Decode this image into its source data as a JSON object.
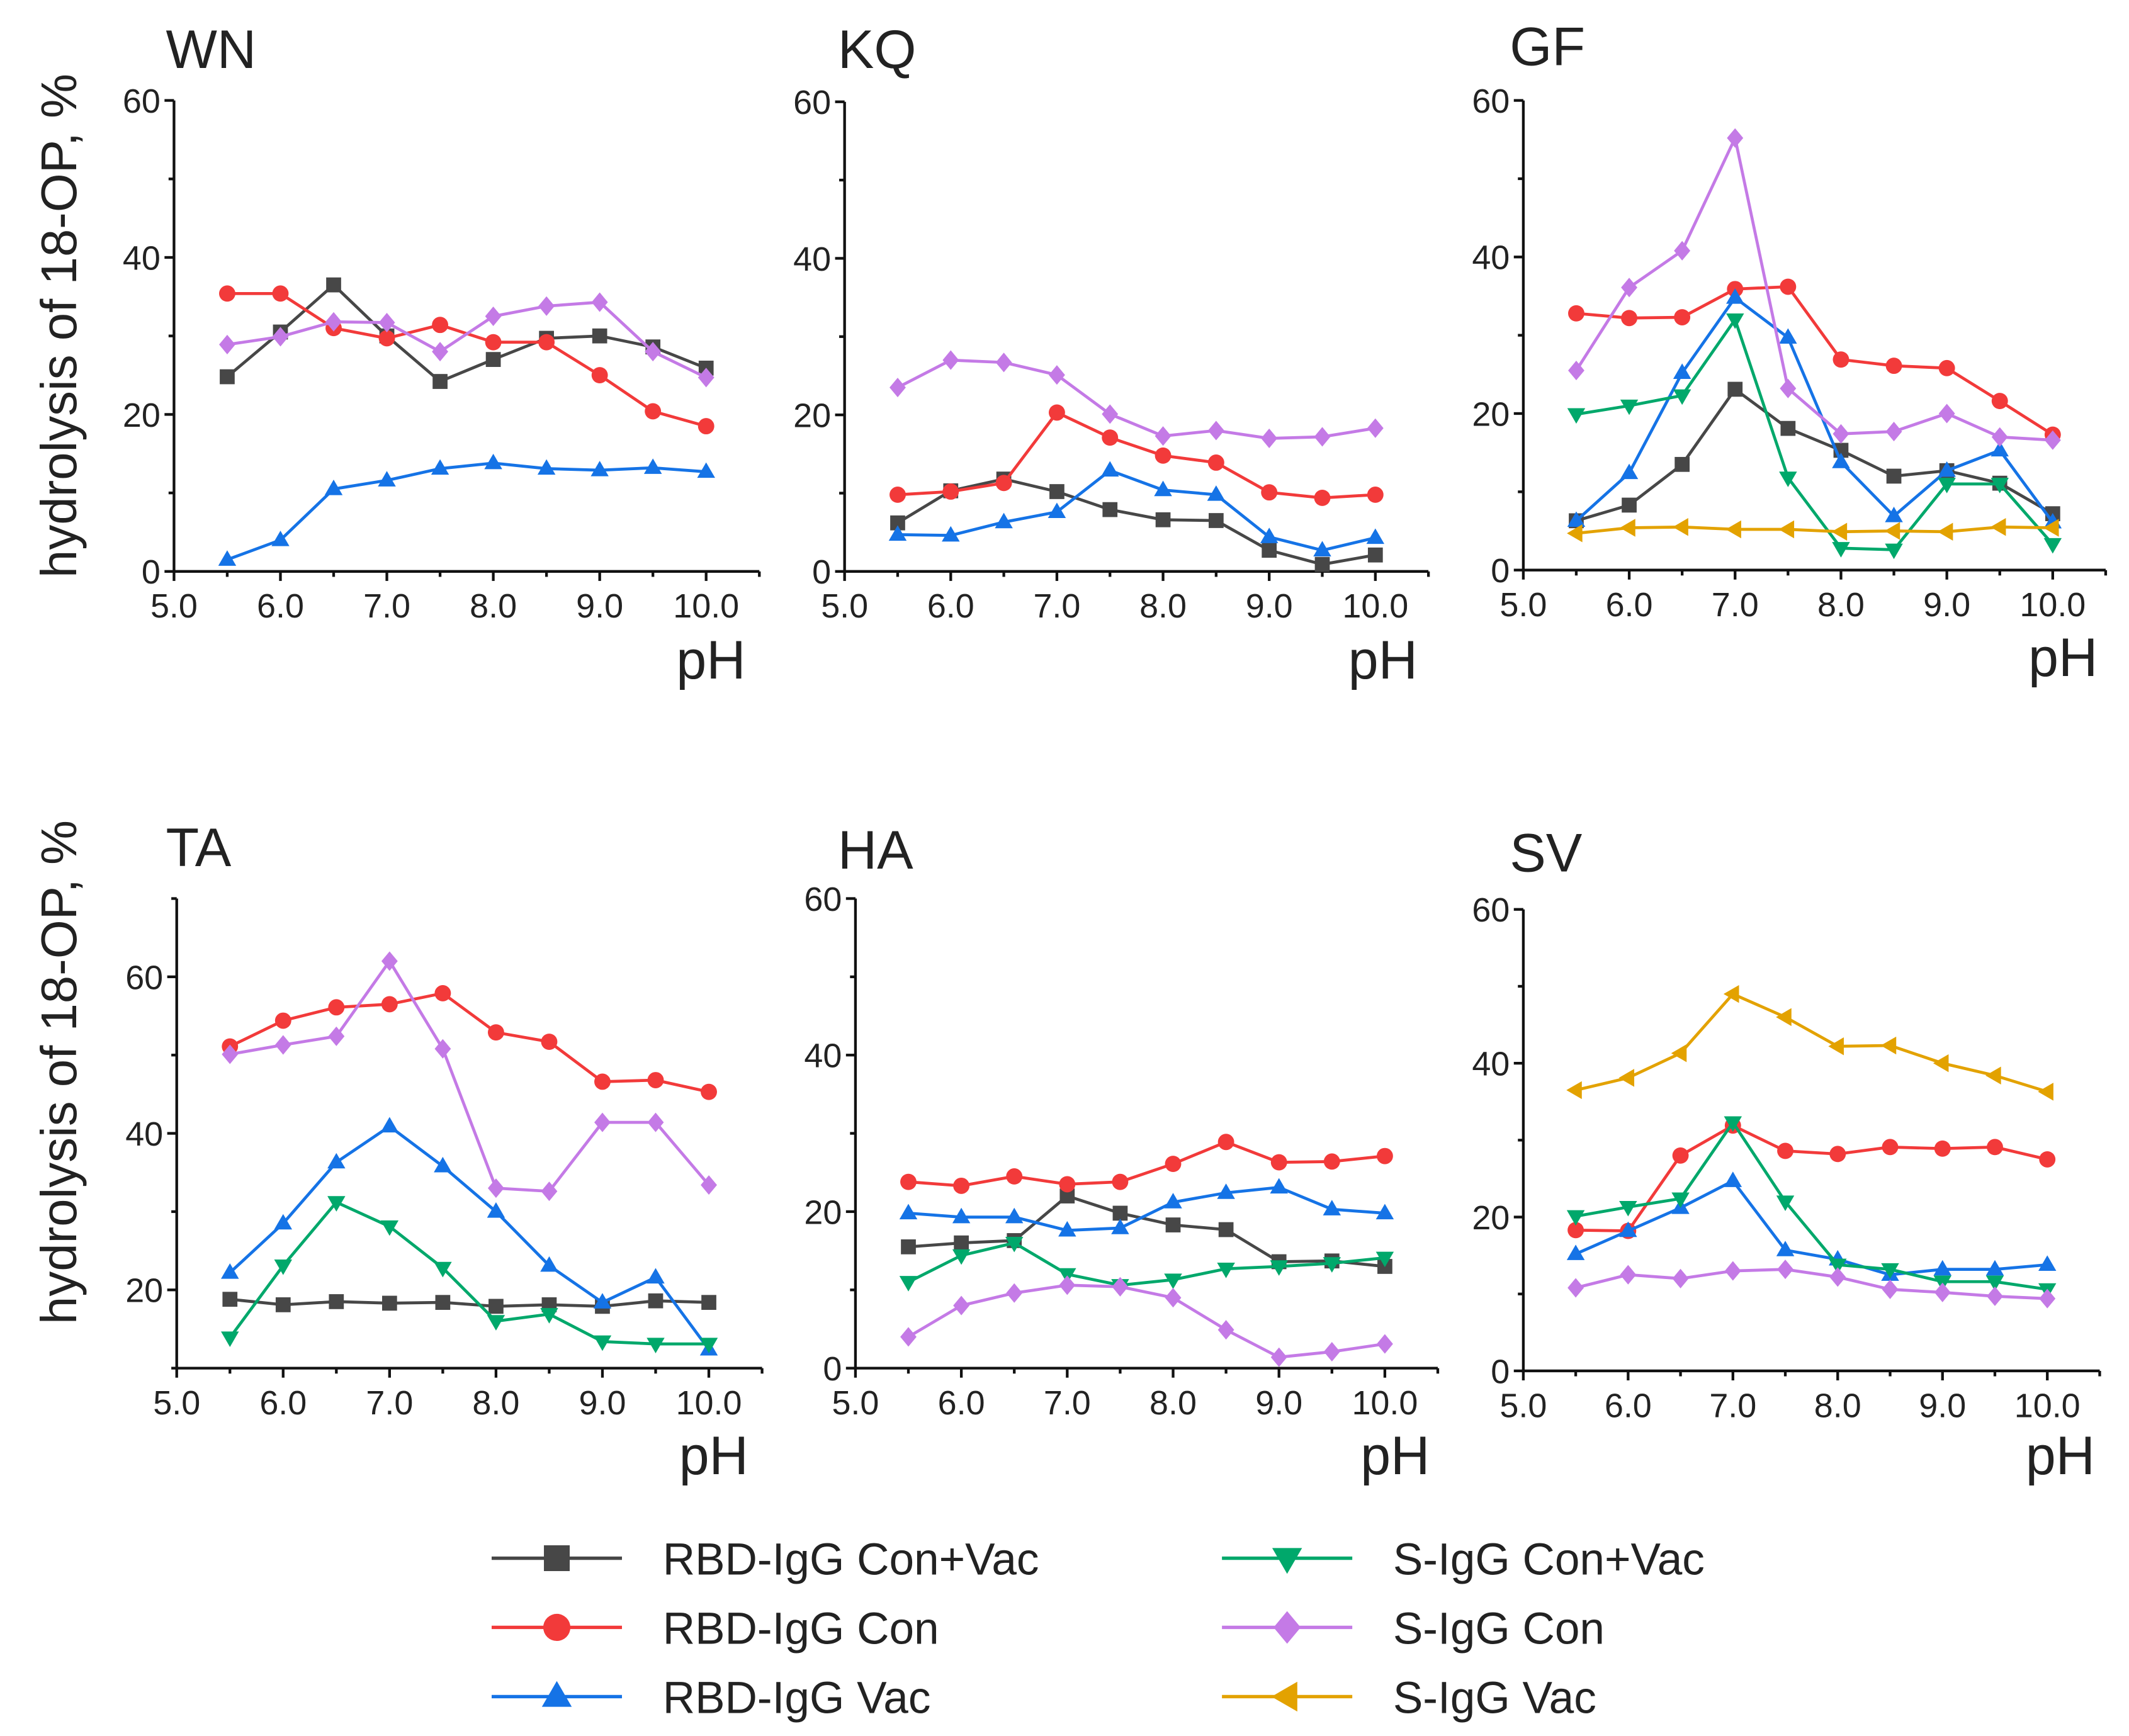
{
  "legend": [
    {
      "key": "rbd_convac",
      "label": "RBD-IgG  Con+Vac",
      "color": "#474747",
      "marker": "square"
    },
    {
      "key": "rbd_con",
      "label": "RBD-IgG  Con",
      "color": "#f23a3a",
      "marker": "circle"
    },
    {
      "key": "rbd_vac",
      "label": "RBD-IgG  Vac",
      "color": "#1573e6",
      "marker": "triangle-up"
    },
    {
      "key": "s_convac",
      "label": "S-IgG  Con+Vac",
      "color": "#00a86b",
      "marker": "triangle-down"
    },
    {
      "key": "s_con",
      "label": "S-IgG  Con",
      "color": "#c47ae6",
      "marker": "diamond"
    },
    {
      "key": "s_vac",
      "label": "S-IgG  Vac",
      "color": "#e3a200",
      "marker": "triangle-left"
    }
  ],
  "chart_data": [
    {
      "type": "line",
      "title": "WN",
      "xlabel": "pH",
      "ylabel": "hydrolysis of 18-OP, %",
      "xlim": [
        5.0,
        10.5
      ],
      "ylim": [
        0,
        60
      ],
      "xticks": [
        "5.0",
        "6.0",
        "7.0",
        "8.0",
        "9.0",
        "10.0"
      ],
      "yticks": [
        "0",
        "20",
        "40",
        "60"
      ],
      "x": [
        5.5,
        6.0,
        6.5,
        7.0,
        7.5,
        8.0,
        8.5,
        9.0,
        9.5,
        10.0
      ],
      "series": [
        {
          "name": "RBD-IgG  Con+Vac",
          "key": "rbd_convac",
          "values": [
            24.8,
            30.5,
            36.5,
            30.0,
            24.2,
            27.0,
            29.7,
            30.0,
            28.6,
            25.9
          ]
        },
        {
          "name": "RBD-IgG  Con",
          "key": "rbd_con",
          "values": [
            35.4,
            35.4,
            31.0,
            29.7,
            31.4,
            29.2,
            29.2,
            25.0,
            20.4,
            18.5
          ]
        },
        {
          "name": "RBD-IgG  Vac",
          "key": "rbd_vac",
          "values": [
            1.5,
            4.0,
            10.5,
            11.6,
            13.1,
            13.8,
            13.1,
            12.9,
            13.2,
            12.7
          ]
        },
        {
          "name": "S-IgG  Con",
          "key": "s_con",
          "values": [
            28.9,
            29.9,
            31.8,
            31.7,
            28.0,
            32.5,
            33.8,
            34.3,
            28.0,
            24.7
          ]
        }
      ]
    },
    {
      "type": "line",
      "title": "KQ",
      "xlabel": "pH",
      "ylabel": "",
      "xlim": [
        5.0,
        10.5
      ],
      "ylim": [
        0,
        60
      ],
      "xticks": [
        "5.0",
        "6.0",
        "7.0",
        "8.0",
        "9.0",
        "10.0"
      ],
      "yticks": [
        "0",
        "20",
        "40",
        "60"
      ],
      "x": [
        5.5,
        6.0,
        6.5,
        7.0,
        7.5,
        8.0,
        8.5,
        9.0,
        9.5,
        10.0
      ],
      "series": [
        {
          "name": "RBD-IgG  Con+Vac",
          "key": "rbd_convac",
          "values": [
            6.2,
            10.3,
            11.8,
            10.2,
            7.9,
            6.6,
            6.5,
            2.7,
            0.9,
            2.1
          ]
        },
        {
          "name": "RBD-IgG  Con",
          "key": "rbd_con",
          "values": [
            9.8,
            10.2,
            11.3,
            20.3,
            17.1,
            14.8,
            13.9,
            10.1,
            9.4,
            9.8
          ]
        },
        {
          "name": "RBD-IgG  Vac",
          "key": "rbd_vac",
          "values": [
            4.7,
            4.6,
            6.3,
            7.6,
            12.9,
            10.4,
            9.8,
            4.4,
            2.7,
            4.3
          ]
        },
        {
          "name": "S-IgG  Con",
          "key": "s_con",
          "values": [
            23.5,
            27.0,
            26.7,
            25.1,
            20.1,
            17.3,
            18.0,
            17.0,
            17.2,
            18.3
          ]
        }
      ]
    },
    {
      "type": "line",
      "title": "GF",
      "xlabel": "pH",
      "ylabel": "",
      "xlim": [
        5.0,
        10.5
      ],
      "ylim": [
        0,
        60
      ],
      "xticks": [
        "5.0",
        "6.0",
        "7.0",
        "8.0",
        "9.0",
        "10.0"
      ],
      "yticks": [
        "0",
        "20",
        "40",
        "60"
      ],
      "x": [
        5.5,
        6.0,
        6.5,
        7.0,
        7.5,
        8.0,
        8.5,
        9.0,
        9.5,
        10.0
      ],
      "series": [
        {
          "name": "RBD-IgG  Con+Vac",
          "key": "rbd_convac",
          "values": [
            6.3,
            8.3,
            13.5,
            23.1,
            18.1,
            15.3,
            12.0,
            12.7,
            11.1,
            7.2
          ]
        },
        {
          "name": "RBD-IgG  Con",
          "key": "rbd_con",
          "values": [
            32.8,
            32.2,
            32.3,
            35.9,
            36.2,
            26.9,
            26.1,
            25.8,
            21.6,
            17.3
          ]
        },
        {
          "name": "RBD-IgG  Vac",
          "key": "rbd_vac",
          "values": [
            6.3,
            12.4,
            25.2,
            34.8,
            29.7,
            13.8,
            6.9,
            12.7,
            15.3,
            6.1
          ]
        },
        {
          "name": "S-IgG  Con+Vac",
          "key": "s_convac",
          "values": [
            19.9,
            21.0,
            22.3,
            32.0,
            11.8,
            2.8,
            2.6,
            11.0,
            11.0,
            3.3
          ]
        },
        {
          "name": "S-IgG  Con",
          "key": "s_con",
          "values": [
            25.5,
            36.1,
            40.8,
            55.2,
            23.2,
            17.4,
            17.7,
            20.0,
            17.0,
            16.6
          ]
        },
        {
          "name": "S-IgG  Vac",
          "key": "s_vac",
          "values": [
            4.7,
            5.4,
            5.5,
            5.2,
            5.2,
            4.9,
            5.0,
            4.9,
            5.5,
            5.4
          ]
        }
      ]
    },
    {
      "type": "line",
      "title": "TA",
      "xlabel": "pH",
      "ylabel": "hydrolysis of 18-OP, %",
      "xlim": [
        5.0,
        10.5
      ],
      "ylim": [
        10,
        70
      ],
      "xticks": [
        "5.0",
        "6.0",
        "7.0",
        "8.0",
        "9.0",
        "10.0"
      ],
      "yticks": [
        "20",
        "40",
        "60"
      ],
      "x": [
        5.5,
        6.0,
        6.5,
        7.0,
        7.5,
        8.0,
        8.5,
        9.0,
        9.5,
        10.0
      ],
      "series": [
        {
          "name": "RBD-IgG  Con+Vac",
          "key": "rbd_convac",
          "values": [
            18.8,
            18.1,
            18.5,
            18.3,
            18.4,
            17.9,
            18.1,
            17.9,
            18.6,
            18.4
          ]
        },
        {
          "name": "RBD-IgG  Con",
          "key": "rbd_con",
          "values": [
            51.1,
            54.4,
            56.1,
            56.5,
            57.9,
            52.9,
            51.7,
            46.6,
            46.8,
            45.3
          ]
        },
        {
          "name": "RBD-IgG  Vac",
          "key": "rbd_vac",
          "values": [
            22.2,
            28.5,
            36.3,
            40.9,
            35.8,
            30.0,
            23.1,
            18.4,
            21.6,
            12.4
          ]
        },
        {
          "name": "S-IgG  Con+Vac",
          "key": "s_convac",
          "values": [
            13.9,
            23.1,
            31.2,
            28.1,
            22.8,
            16.0,
            16.9,
            13.4,
            13.1,
            13.1
          ]
        },
        {
          "name": "S-IgG  Con",
          "key": "s_con",
          "values": [
            50.1,
            51.3,
            52.4,
            62.0,
            50.8,
            33.0,
            32.6,
            41.4,
            41.4,
            33.4
          ]
        }
      ]
    },
    {
      "type": "line",
      "title": "HA",
      "xlabel": "pH",
      "ylabel": "",
      "xlim": [
        5.0,
        10.5
      ],
      "ylim": [
        0,
        60
      ],
      "xticks": [
        "5.0",
        "6.0",
        "7.0",
        "8.0",
        "9.0",
        "10.0"
      ],
      "yticks": [
        "0",
        "20",
        "40",
        "60"
      ],
      "x": [
        5.5,
        6.0,
        6.5,
        7.0,
        7.5,
        8.0,
        8.5,
        9.0,
        9.5,
        10.0
      ],
      "series": [
        {
          "name": "RBD-IgG  Con+Vac",
          "key": "rbd_convac",
          "values": [
            15.5,
            16.0,
            16.3,
            22.0,
            19.8,
            18.3,
            17.7,
            13.6,
            13.7,
            13.0
          ]
        },
        {
          "name": "RBD-IgG  Con",
          "key": "rbd_con",
          "values": [
            23.8,
            23.3,
            24.5,
            23.5,
            23.8,
            26.1,
            28.9,
            26.3,
            26.4,
            27.1
          ]
        },
        {
          "name": "RBD-IgG  Vac",
          "key": "rbd_vac",
          "values": [
            19.8,
            19.3,
            19.3,
            17.6,
            17.9,
            21.2,
            22.4,
            23.1,
            20.3,
            19.8
          ]
        },
        {
          "name": "S-IgG  Con+Vac",
          "key": "s_convac",
          "values": [
            11.0,
            14.4,
            16.0,
            12.0,
            10.6,
            11.3,
            12.7,
            13.0,
            13.4,
            14.1
          ]
        },
        {
          "name": "S-IgG  Con",
          "key": "s_con",
          "values": [
            4.0,
            8.0,
            9.6,
            10.6,
            10.4,
            9.0,
            4.9,
            1.4,
            2.1,
            3.1
          ]
        }
      ]
    },
    {
      "type": "line",
      "title": "SV",
      "xlabel": "pH",
      "ylabel": "",
      "xlim": [
        5.0,
        10.5
      ],
      "ylim": [
        0,
        60
      ],
      "xticks": [
        "5.0",
        "6.0",
        "7.0",
        "8.0",
        "9.0",
        "10.0"
      ],
      "yticks": [
        "0",
        "20",
        "40",
        "60"
      ],
      "x": [
        5.5,
        6.0,
        6.5,
        7.0,
        7.5,
        8.0,
        8.5,
        9.0,
        9.5,
        10.0
      ],
      "series": [
        {
          "name": "S-IgG  Vac",
          "key": "s_vac",
          "values": [
            36.5,
            38.1,
            41.3,
            49.0,
            46.0,
            42.2,
            42.3,
            40.0,
            38.4,
            36.3
          ]
        },
        {
          "name": "RBD-IgG  Con",
          "key": "rbd_con",
          "values": [
            18.3,
            18.2,
            28.0,
            31.9,
            28.6,
            28.2,
            29.1,
            28.9,
            29.1,
            27.5
          ]
        },
        {
          "name": "RBD-IgG  Vac",
          "key": "rbd_vac",
          "values": [
            15.2,
            18.2,
            21.2,
            24.7,
            15.7,
            14.5,
            12.5,
            13.2,
            13.2,
            13.8
          ]
        },
        {
          "name": "S-IgG  Con+Vac",
          "key": "s_convac",
          "values": [
            20.1,
            21.3,
            22.4,
            32.3,
            22.0,
            13.8,
            13.2,
            11.6,
            11.6,
            10.6
          ]
        },
        {
          "name": "S-IgG  Con",
          "key": "s_con",
          "values": [
            10.8,
            12.5,
            12.0,
            13.0,
            13.2,
            12.2,
            10.6,
            10.2,
            9.7,
            9.4
          ]
        }
      ]
    }
  ]
}
